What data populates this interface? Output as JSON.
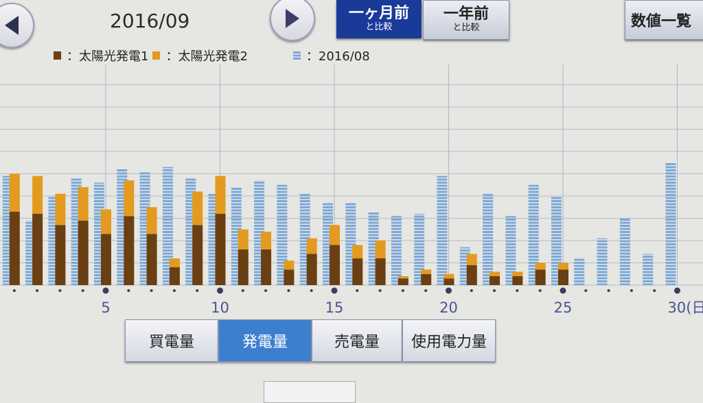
{
  "header": {
    "month": "2016/09",
    "prev_icon": "triangle-left-icon",
    "next_icon": "triangle-right-icon",
    "compare_month": {
      "line1": "一ヶ月前",
      "line2": "と比較",
      "selected": true
    },
    "compare_year": {
      "line1": "一年前",
      "line2": "と比較",
      "selected": false
    },
    "list_button": "数値一覧"
  },
  "legend": [
    {
      "label": "：太陽光発電1",
      "color": "#6b3f12"
    },
    {
      "label": "：太陽光発電2",
      "color": "#e39a1f"
    },
    {
      "label": "：2016/08",
      "color": "#7aa8d8"
    }
  ],
  "tabs": [
    {
      "label": "買電量",
      "selected": false
    },
    {
      "label": "発電量",
      "selected": true
    },
    {
      "label": "売電量",
      "selected": false
    },
    {
      "label": "使用電力量",
      "selected": false
    }
  ],
  "chart_data": {
    "type": "bar",
    "stacked": true,
    "grid": true,
    "x": [
      1,
      2,
      3,
      4,
      5,
      6,
      7,
      8,
      9,
      10,
      11,
      12,
      13,
      14,
      15,
      16,
      17,
      18,
      19,
      20,
      21,
      22,
      23,
      24,
      25,
      26,
      27,
      28,
      29,
      30
    ],
    "x_tick_labels": [
      "5",
      "10",
      "15",
      "20",
      "25",
      "30(日"
    ],
    "x_tick_values": [
      5,
      10,
      15,
      20,
      25,
      30
    ],
    "ylim": [
      0,
      10
    ],
    "series": [
      {
        "name": "太陽光発電1",
        "color": "#6b3f12",
        "values": [
          3.3,
          3.2,
          2.7,
          2.9,
          2.3,
          3.1,
          2.3,
          0.8,
          2.7,
          3.2,
          1.6,
          1.6,
          0.7,
          1.4,
          1.8,
          1.2,
          1.2,
          0.3,
          0.5,
          0.3,
          0.9,
          0.4,
          0.4,
          0.7,
          0.7,
          null,
          null,
          null,
          null,
          null
        ]
      },
      {
        "name": "太陽光発電2",
        "color": "#e39a1f",
        "values": [
          1.7,
          1.7,
          1.4,
          1.5,
          1.1,
          1.6,
          1.2,
          0.4,
          1.5,
          1.7,
          0.9,
          0.8,
          0.4,
          0.7,
          0.9,
          0.6,
          0.8,
          0.1,
          0.2,
          0.2,
          0.5,
          0.2,
          0.2,
          0.3,
          0.3,
          null,
          null,
          null,
          null,
          null
        ]
      },
      {
        "name": "2016/08",
        "color": "#7aa8d8",
        "values": [
          4.9,
          2.9,
          4.0,
          4.8,
          4.6,
          5.2,
          5.1,
          5.3,
          4.8,
          4.1,
          4.4,
          4.7,
          4.5,
          4.1,
          3.7,
          3.7,
          3.3,
          3.1,
          3.2,
          4.9,
          1.7,
          4.1,
          3.1,
          4.5,
          4.0,
          1.2,
          2.1,
          3.0,
          1.4,
          5.5
        ]
      }
    ]
  }
}
